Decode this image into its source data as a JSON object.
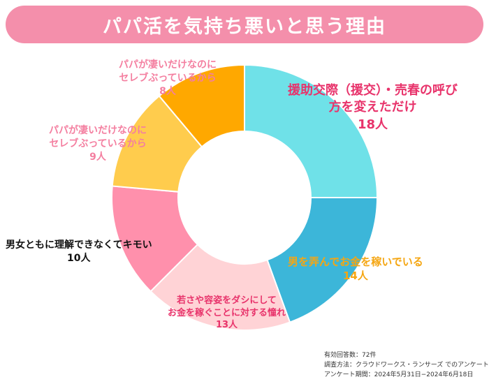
{
  "title": "パパ活を気持ち悪いと思う理由",
  "colors": {
    "title_bg": "#f48fab"
  },
  "chart_data": {
    "type": "pie",
    "unit": "人",
    "slices": [
      {
        "label_lines": [
          "援助交際（援交）・売春の呼び",
          "方を変えただけ"
        ],
        "value": 18,
        "value_text": "18人",
        "color": "#6fe1e8",
        "label_color": "#e8336b"
      },
      {
        "label_lines": [
          "男を弄んでお金を稼いでいる"
        ],
        "value": 14,
        "value_text": "14人",
        "color": "#3cb6d9",
        "label_color": "#f5a612"
      },
      {
        "label_lines": [
          "若さや容姿をダシにして",
          "お金を稼ぐことに対する憧れ"
        ],
        "value": 13,
        "value_text": "13人",
        "color": "#ffd3d6",
        "label_color": "#e8336b"
      },
      {
        "label_lines": [
          "男女ともに理解できなくてキモい"
        ],
        "value": 10,
        "value_text": "10人",
        "color": "#ff90ac",
        "label_color": "#111111"
      },
      {
        "label_lines": [
          "パパが凄いだけなのに",
          "セレブぶっているから"
        ],
        "value": 9,
        "value_text": "9人",
        "color": "#ffcc4d",
        "label_color": "#f47fa0"
      },
      {
        "label_lines": [
          "パパが凄いだけなのに",
          "セレブぶっているから"
        ],
        "value": 8,
        "value_text": "8人",
        "color": "#ffa800",
        "label_color": "#f47fa0"
      }
    ]
  },
  "footer": {
    "line1": "有効回答数：72件",
    "line2": "調査方法：クラウドワークス・ランサーズ でのアンケート",
    "line3": "アンケート期間：2024年5月31日−2024年6月18日"
  }
}
